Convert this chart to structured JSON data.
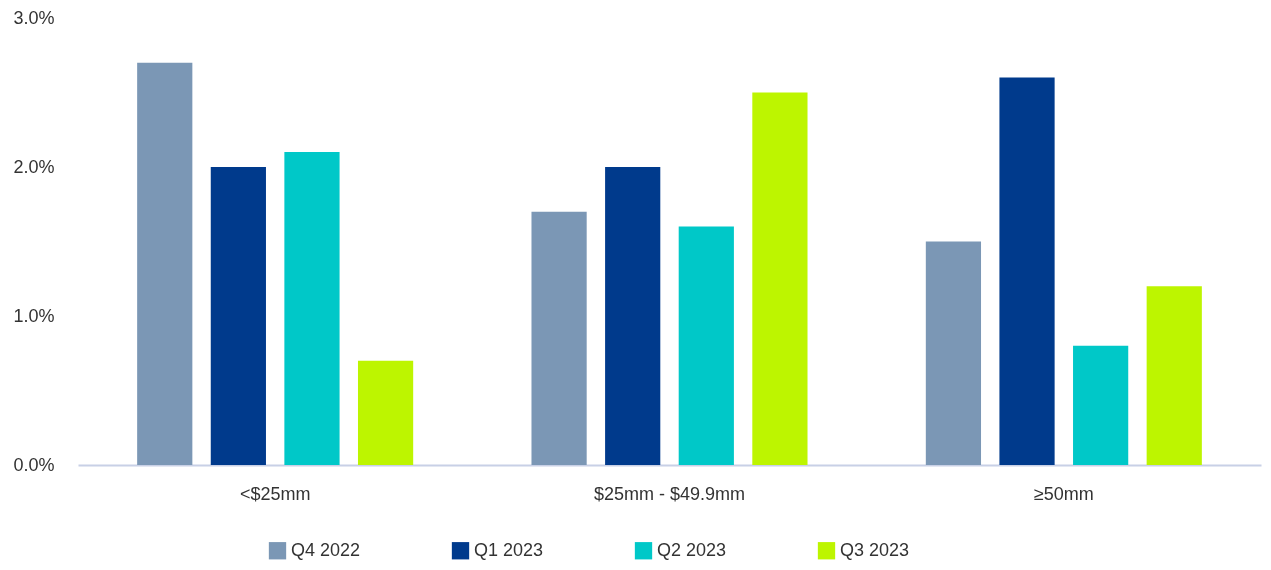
{
  "chart_data": {
    "type": "bar",
    "categories": [
      "<$25mm",
      "$25mm - $49.9mm",
      "≥50mm"
    ],
    "series": [
      {
        "name": "Q4 2022",
        "color": "#7b97b5",
        "values": [
          2.7,
          1.7,
          1.5
        ]
      },
      {
        "name": "Q1 2023",
        "color": "#003a8c",
        "values": [
          2.0,
          2.0,
          2.6
        ]
      },
      {
        "name": "Q2 2023",
        "color": "#00c8c8",
        "values": [
          2.1,
          1.6,
          0.8
        ]
      },
      {
        "name": "Q3 2023",
        "color": "#bdf500",
        "values": [
          0.7,
          2.5,
          1.2
        ]
      }
    ],
    "ylim": [
      0,
      3
    ],
    "yticks": [
      {
        "value": 0,
        "label": "0.0%"
      },
      {
        "value": 1,
        "label": "1.0%"
      },
      {
        "value": 2,
        "label": "2.0%"
      },
      {
        "value": 3,
        "label": "3.0%"
      }
    ],
    "grid": false,
    "legend": "bottom"
  }
}
